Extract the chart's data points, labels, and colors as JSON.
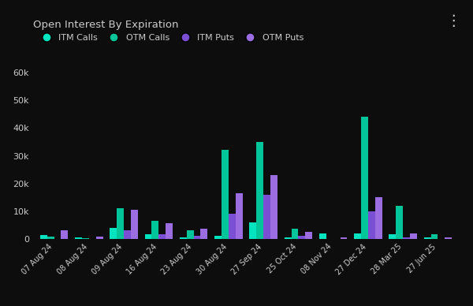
{
  "title": "Open Interest By Expiration",
  "background_color": "#0d0d0d",
  "text_color": "#cccccc",
  "categories": [
    "07 Aug 24",
    "08 Aug 24",
    "09 Aug 24",
    "16 Aug 24",
    "23 Aug 24",
    "30 Aug 24",
    "27 Sep 24",
    "25 Oct 24",
    "08 Nov 24",
    "27 Dec 24",
    "28 Mar 25",
    "27 Jun 25"
  ],
  "itm_calls": [
    1200,
    500,
    4000,
    1500,
    500,
    1000,
    6000,
    500,
    2000,
    2000,
    1500,
    500
  ],
  "otm_calls": [
    800,
    200,
    11000,
    6500,
    3000,
    32000,
    35000,
    3500,
    0,
    44000,
    12000,
    1500
  ],
  "itm_puts": [
    0,
    0,
    3000,
    1500,
    1000,
    9000,
    16000,
    1000,
    0,
    10000,
    500,
    0
  ],
  "otm_puts": [
    3000,
    800,
    10500,
    5500,
    3500,
    16500,
    23000,
    2500,
    500,
    15000,
    2000,
    500
  ],
  "itm_calls_color": "#00e5c0",
  "otm_calls_color": "#00c49a",
  "itm_puts_color": "#7b4fd4",
  "otm_puts_color": "#9b6de0",
  "ylim": [
    0,
    62000
  ],
  "yticks": [
    0,
    10000,
    20000,
    30000,
    40000,
    50000,
    60000
  ],
  "ytick_labels": [
    "0",
    "10k",
    "20k",
    "30k",
    "40k",
    "50k",
    "60k"
  ],
  "legend_labels": [
    "ITM Calls",
    "OTM Calls",
    "ITM Puts",
    "OTM Puts"
  ]
}
